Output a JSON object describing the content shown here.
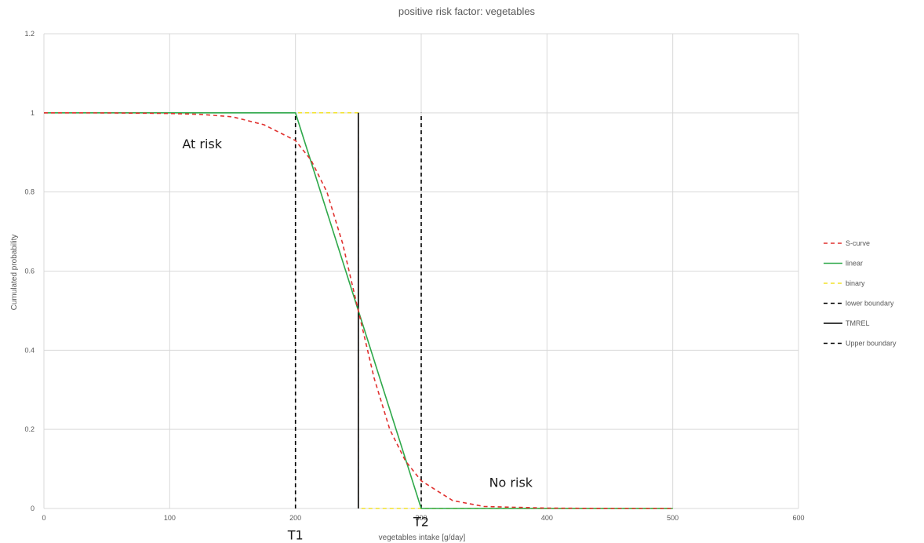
{
  "chart_data": {
    "type": "line",
    "title": "positive risk factor: vegetables",
    "xlabel": "vegetables intake [g/day]",
    "ylabel": "Cumulated probability",
    "xlim": [
      0,
      600
    ],
    "ylim": [
      0,
      1.2
    ],
    "x_ticks": [
      0,
      100,
      200,
      300,
      400,
      500,
      600
    ],
    "y_ticks": [
      0,
      0.2,
      0.4,
      0.6,
      0.8,
      1,
      1.2
    ],
    "y_tick_labels": [
      "0",
      "0.2",
      "0.4",
      "0.6",
      "0.8",
      "1",
      "1.2"
    ],
    "grid": true,
    "legend_position": "right",
    "series": [
      {
        "name": "S-curve",
        "color": "#e0312f",
        "style": "dashed",
        "x": [
          0,
          50,
          100,
          125,
          150,
          175,
          200,
          212.5,
          225,
          237.5,
          250,
          262.5,
          275,
          287.5,
          300,
          325,
          350,
          400,
          450,
          500
        ],
        "y": [
          1.0,
          0.9999,
          0.9985,
          0.996,
          0.99,
          0.97,
          0.93,
          0.88,
          0.8,
          0.67,
          0.5,
          0.33,
          0.2,
          0.12,
          0.07,
          0.02,
          0.005,
          0.001,
          0.0,
          0.0
        ]
      },
      {
        "name": "linear",
        "color": "#2ea84a",
        "style": "solid",
        "x": [
          0,
          200,
          300,
          500
        ],
        "y": [
          1,
          1,
          0,
          0
        ]
      },
      {
        "name": "binary",
        "color": "#f2e22a",
        "style": "dashed",
        "x": [
          0,
          250,
          250,
          500
        ],
        "y": [
          1,
          1,
          0,
          0
        ]
      },
      {
        "name": "lower boundary",
        "color": "#000000",
        "style": "dashed",
        "x": [
          200,
          200
        ],
        "y": [
          0,
          1
        ]
      },
      {
        "name": "TMREL",
        "color": "#000000",
        "style": "solid",
        "x": [
          250,
          250
        ],
        "y": [
          0,
          1
        ]
      },
      {
        "name": "Upper boundary",
        "color": "#000000",
        "style": "dashed",
        "x": [
          300,
          300
        ],
        "y": [
          0,
          1
        ]
      }
    ],
    "annotations": [
      {
        "text": "At risk",
        "x": 110,
        "y": 0.91
      },
      {
        "text": "No risk",
        "x": 354,
        "y": 0.055
      },
      {
        "text": "T1",
        "x": 200,
        "y": -0.078
      },
      {
        "text": "T2",
        "x": 300,
        "y": -0.045
      }
    ]
  }
}
